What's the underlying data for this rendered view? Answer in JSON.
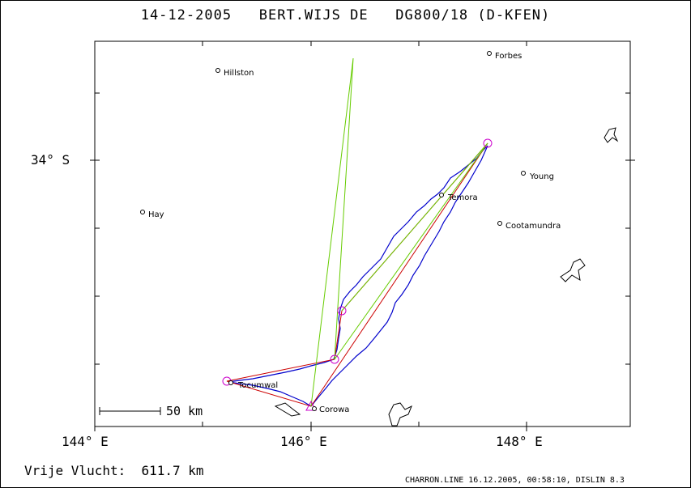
{
  "header": {
    "title": "14-12-2005   BERT.WIJS DE   DG800/18 (D-KFEN)"
  },
  "axes": {
    "lat_label": "34° S",
    "lon_labels": [
      "144° E",
      "146° E",
      "148° E"
    ]
  },
  "places": [
    {
      "name": "Hillston"
    },
    {
      "name": "Forbes"
    },
    {
      "name": "Hay"
    },
    {
      "name": "Young"
    },
    {
      "name": "Temora"
    },
    {
      "name": "Cootamundra"
    },
    {
      "name": "Tocumwal"
    },
    {
      "name": "Corowa"
    }
  ],
  "scale": {
    "label": "50 km"
  },
  "footer": {
    "distance": "Vrije Vlucht:  611.7 km",
    "credit": "CHARRON.LINE 16.12.2005, 00:58:10, DISLIN 8.3"
  },
  "colors": {
    "track": "#0000cc",
    "task_line": "#cc0000",
    "alt_line": "#66cc00",
    "turnpoint": "#cc00cc"
  }
}
